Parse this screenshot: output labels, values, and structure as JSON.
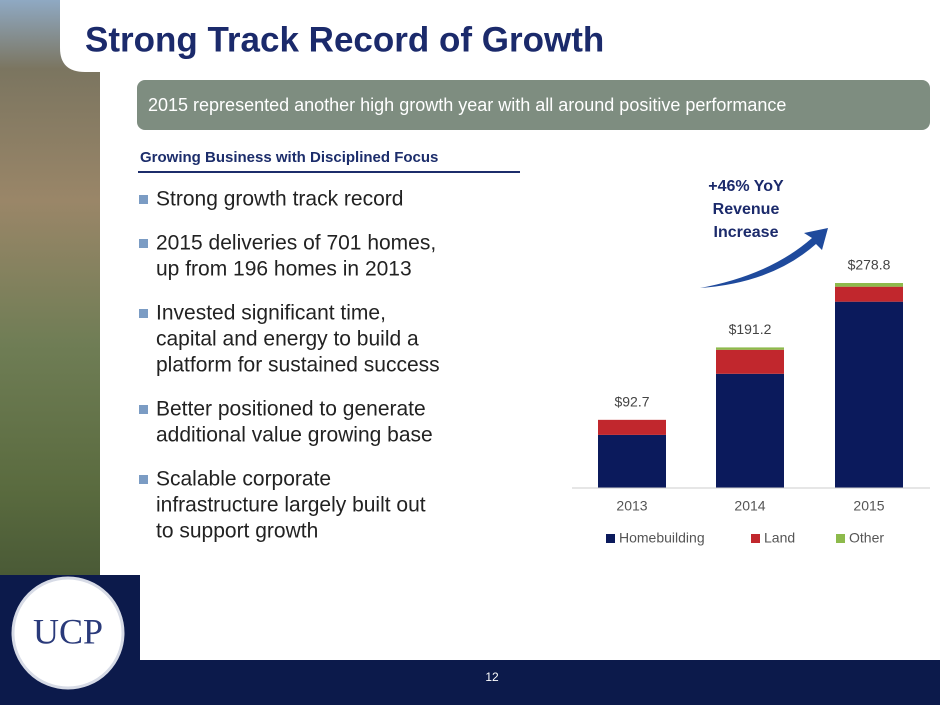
{
  "title": "Strong Track Record of Growth",
  "banner": "2015 represented another high growth year with all around positive performance",
  "section_heading": "Growing Business with Disciplined Focus",
  "bullets": [
    [
      "Strong growth track record"
    ],
    [
      "2015 deliveries of 701 homes,",
      "up from 196 homes in 2013"
    ],
    [
      "Invested significant time,",
      "capital and energy to build a",
      "platform for sustained success"
    ],
    [
      "Better positioned to generate",
      "additional value growing base"
    ],
    [
      "Scalable corporate",
      "infrastructure largely built out",
      "to support growth"
    ]
  ],
  "logo": "UCP",
  "page_number": "12",
  "chart_data": {
    "type": "stacked-bar",
    "annotation": [
      "+46% YoY",
      "Revenue",
      "Increase"
    ],
    "categories": [
      "2013",
      "2014",
      "2015"
    ],
    "series": [
      {
        "name": "Homebuilding",
        "color": "#0b1a5c",
        "values": [
          72.2,
          155.3,
          253.4
        ]
      },
      {
        "name": "Land",
        "color": "#c1272d",
        "values": [
          20.5,
          32.7,
          20.4
        ]
      },
      {
        "name": "Other",
        "color": "#8dba4b",
        "values": [
          0,
          3.2,
          5.0
        ]
      }
    ],
    "totals": [
      92.7,
      191.2,
      278.8
    ],
    "total_labels": [
      "$92.7",
      "$191.2",
      "$278.8"
    ],
    "legend": "bottom"
  }
}
